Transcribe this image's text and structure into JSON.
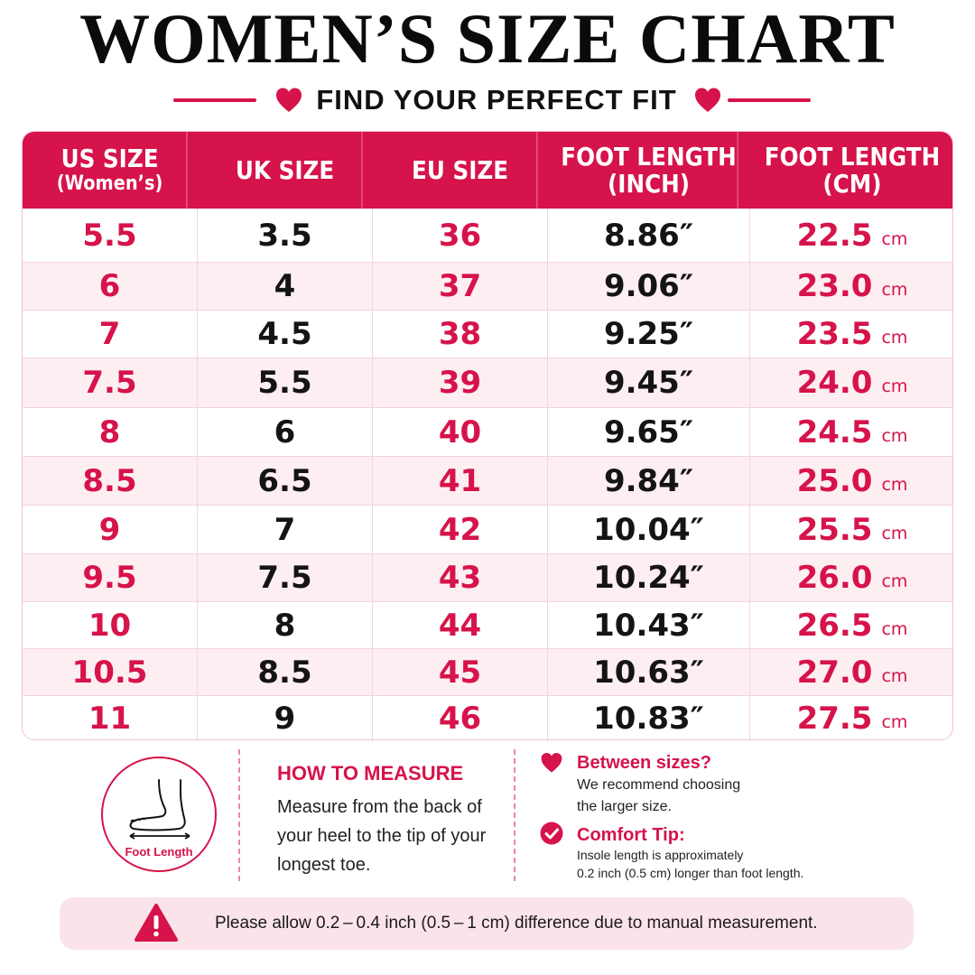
{
  "header": {
    "title": "WOMEN’S SIZE CHART",
    "subtitle": "FIND YOUR PERFECT FIT"
  },
  "table": {
    "columns": [
      {
        "line1": "US SIZE",
        "line2": "(Women’s)"
      },
      {
        "line1": "UK SIZE",
        "line2": ""
      },
      {
        "line1": "EU SIZE",
        "line2": ""
      },
      {
        "line1": "FOOT LENGTH",
        "line2": "(INCH)"
      },
      {
        "line1": "FOOT LENGTH",
        "line2": "(CM)"
      }
    ],
    "cm_unit": "cm",
    "rows": [
      {
        "us": "5.5",
        "uk": "3.5",
        "eu": "36",
        "inch": "8.86″",
        "cm": "22.5"
      },
      {
        "us": "6",
        "uk": "4",
        "eu": "37",
        "inch": "9.06″",
        "cm": "23.0"
      },
      {
        "us": "7",
        "uk": "4.5",
        "eu": "38",
        "inch": "9.25″",
        "cm": "23.5"
      },
      {
        "us": "7.5",
        "uk": "5.5",
        "eu": "39",
        "inch": "9.45″",
        "cm": "24.0"
      },
      {
        "us": "8",
        "uk": "6",
        "eu": "40",
        "inch": "9.65″",
        "cm": "24.5"
      },
      {
        "us": "8.5",
        "uk": "6.5",
        "eu": "41",
        "inch": "9.84″",
        "cm": "25.0"
      },
      {
        "us": "9",
        "uk": "7",
        "eu": "42",
        "inch": "10.04″",
        "cm": "25.5"
      },
      {
        "us": "9.5",
        "uk": "7.5",
        "eu": "43",
        "inch": "10.24″",
        "cm": "26.0"
      },
      {
        "us": "10",
        "uk": "8",
        "eu": "44",
        "inch": "10.43″",
        "cm": "26.5"
      },
      {
        "us": "10.5",
        "uk": "8.5",
        "eu": "45",
        "inch": "10.63″",
        "cm": "27.0"
      },
      {
        "us": "11",
        "uk": "9",
        "eu": "46",
        "inch": "10.83″",
        "cm": "27.5"
      }
    ]
  },
  "measure": {
    "icon_label": "Foot Length",
    "title": "HOW TO MEASURE",
    "text": "Measure from the back of your heel to the tip of your longest toe."
  },
  "tips": {
    "between_title": "Between sizes?",
    "between_text_1": "We recommend choosing",
    "between_text_2": "the larger size.",
    "comfort_title": "Comfort Tip:",
    "comfort_text_1": "Insole length is approximately",
    "comfort_text_2": "0.2 inch (0.5 cm) longer than foot length."
  },
  "notice": {
    "text": "Please allow 0.2 – 0.4 inch (0.5 – 1 cm) difference due to manual measurement."
  },
  "colors": {
    "accent": "#d6134a",
    "row_alt": "#fdeef2",
    "notice_bg": "#fbe3ea"
  }
}
